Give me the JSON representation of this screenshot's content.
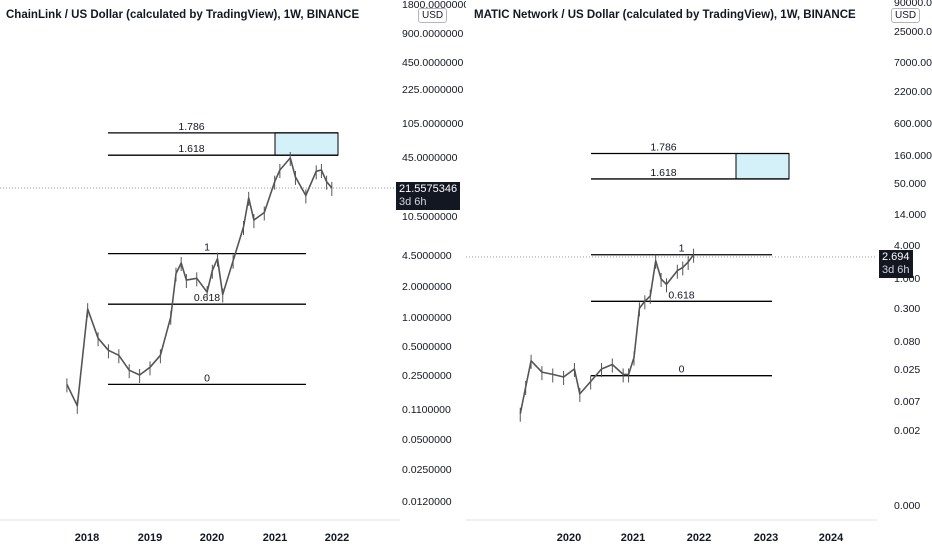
{
  "charts": [
    {
      "title": "ChainLink / US Dollar (calculated by TradingView), 1W, BINANCE",
      "currency_badge": "USD",
      "last_price": "21.5575346",
      "countdown": "3d 6h",
      "colors": {
        "candle": "#555555",
        "fib_line": "#000000",
        "box_fill": "#d4f1fa",
        "price_line": "#9598a1"
      }
    },
    {
      "title": "MATIC Network / US Dollar (calculated by TradingView), 1W, BINANCE",
      "currency_badge": "USD",
      "last_price": "2.694",
      "countdown": "3d 6h",
      "colors": {
        "candle": "#555555",
        "fib_line": "#000000",
        "box_fill": "#d4f1fa",
        "price_line": "#9598a1"
      }
    }
  ],
  "chart_data": [
    {
      "type": "line",
      "title": "ChainLink / US Dollar (calculated by TradingView), 1W, BINANCE",
      "y_scale": "log",
      "y_ticks": [
        "1800.0000000",
        "900.0000000",
        "450.0000000",
        "225.0000000",
        "105.0000000",
        "45.0000000",
        "10.5000000",
        "4.5000000",
        "2.0000000",
        "1.0000000",
        "0.5000000",
        "0.2500000",
        "0.1100000",
        "0.0500000",
        "0.0250000",
        "0.0120000"
      ],
      "x_ticks": [
        "2018",
        "2019",
        "2020",
        "2021",
        "2022"
      ],
      "fib_levels": [
        {
          "label": "1.786",
          "value": 80
        },
        {
          "label": "1.618",
          "value": 47
        },
        {
          "label": "1",
          "value": 4.5
        },
        {
          "label": "0.618",
          "value": 1.35
        },
        {
          "label": "0",
          "value": 0.2
        }
      ],
      "target_box": {
        "from": "1.618",
        "to": "1.786"
      },
      "series": [
        {
          "x": [
            "2017-09",
            "2017-11",
            "2018-01",
            "2018-03",
            "2018-05",
            "2018-07",
            "2018-09",
            "2018-11",
            "2019-01",
            "2019-03",
            "2019-05",
            "2019-06",
            "2019-07",
            "2019-08",
            "2019-10",
            "2019-12",
            "2020-01",
            "2020-02",
            "2020-03",
            "2020-05",
            "2020-07",
            "2020-08",
            "2020-09",
            "2020-11",
            "2021-01",
            "2021-02",
            "2021-04",
            "2021-05",
            "2021-07",
            "2021-09",
            "2021-10",
            "2021-11",
            "2021-12"
          ],
          "values": [
            0.2,
            0.12,
            1.2,
            0.6,
            0.45,
            0.4,
            0.28,
            0.25,
            0.3,
            0.4,
            1.0,
            2.8,
            3.6,
            2.4,
            2.5,
            1.8,
            3.0,
            4.0,
            1.7,
            3.8,
            8.5,
            17,
            10,
            12,
            25,
            33,
            44,
            28,
            18,
            32,
            33,
            25,
            21.56
          ]
        }
      ]
    },
    {
      "type": "line",
      "title": "MATIC Network / US Dollar (calculated by TradingView), 1W, BINANCE",
      "y_scale": "log",
      "y_ticks": [
        "90000.000",
        "25000.000",
        "7000.000",
        "2200.000",
        "600.000",
        "160.000",
        "50.000",
        "14.000",
        "4.000",
        "1.000",
        "0.300",
        "0.080",
        "0.025",
        "0.007",
        "0.002",
        "0.000"
      ],
      "x_ticks": [
        "2020",
        "2021",
        "2022",
        "2023",
        "2024"
      ],
      "fib_levels": [
        {
          "label": "1.786",
          "value": 170
        },
        {
          "label": "1.618",
          "value": 60
        },
        {
          "label": "1",
          "value": 2.694
        },
        {
          "label": "0.618",
          "value": 0.4
        },
        {
          "label": "0",
          "value": 0.019
        }
      ],
      "target_box": {
        "from": "1.618",
        "to": "1.786"
      },
      "series": [
        {
          "x": [
            "2019-04",
            "2019-05",
            "2019-06",
            "2019-08",
            "2019-10",
            "2019-12",
            "2020-02",
            "2020-03",
            "2020-05",
            "2020-07",
            "2020-09",
            "2020-11",
            "2020-12",
            "2021-01",
            "2021-02",
            "2021-03",
            "2021-04",
            "2021-05",
            "2021-06",
            "2021-07",
            "2021-09",
            "2021-10",
            "2021-11",
            "2021-12"
          ],
          "values": [
            0.004,
            0.012,
            0.035,
            0.022,
            0.02,
            0.018,
            0.025,
            0.009,
            0.015,
            0.025,
            0.03,
            0.02,
            0.02,
            0.04,
            0.3,
            0.4,
            0.5,
            2.1,
            1.0,
            0.8,
            1.4,
            1.6,
            2.0,
            2.694
          ]
        }
      ]
    }
  ]
}
